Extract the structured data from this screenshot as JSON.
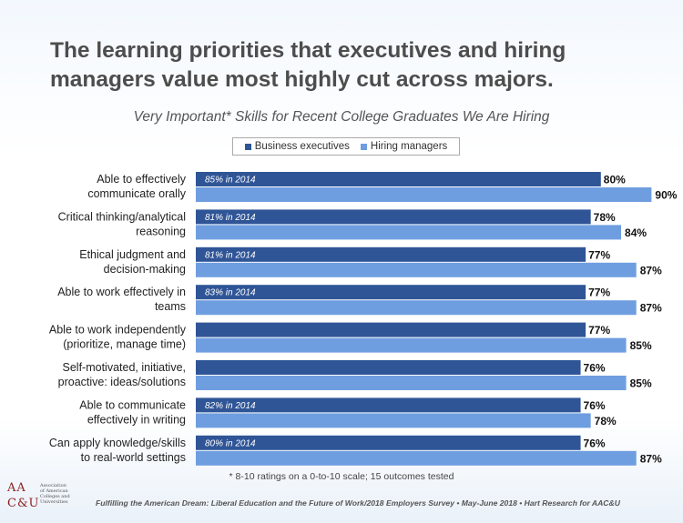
{
  "slide": {
    "title": "The learning priorities that executives and hiring managers value most highly cut across majors.",
    "footnote": "* 8-10 ratings on a 0-to-10 scale; 15 outcomes tested",
    "source": "Fulfilling the American Dream: Liberal Education and the Future of Work/2018 Employers Survey • May-June  2018 • Hart Research for AAC&U",
    "logo_mark": "AAC&U",
    "logo_caption": "Association of American Colleges and Universities"
  },
  "colors": {
    "business": "#2f5597",
    "hiring": "#6f9ee0",
    "label": "#222222"
  },
  "chart_data": {
    "type": "bar",
    "orientation": "horizontal",
    "title": "Very Important* Skills for Recent College Graduates We Are Hiring",
    "xlim": [
      0,
      100
    ],
    "legend": [
      "Business executives",
      "Hiring managers"
    ],
    "categories": [
      "Able to effectively communicate orally",
      "Critical thinking/analytical reasoning",
      "Ethical judgment and decision-making",
      "Able to work effectively in teams",
      "Able to work independently (prioritize, manage time)",
      "Self-motivated, initiative, proactive: ideas/solutions",
      "Able to communicate effectively in writing",
      "Can apply knowledge/skills to real-world settings"
    ],
    "category_lines": [
      [
        "Able to effectively",
        "communicate orally"
      ],
      [
        "Critical thinking/analytical",
        "reasoning"
      ],
      [
        "Ethical judgment and",
        "decision-making"
      ],
      [
        "Able to work effectively in",
        "teams"
      ],
      [
        "Able to work independently",
        "(prioritize, manage time)"
      ],
      [
        "Self-motivated, initiative,",
        "proactive: ideas/solutions"
      ],
      [
        "Able to communicate",
        "effectively in writing"
      ],
      [
        "Can apply knowledge/skills",
        "to real-world settings"
      ]
    ],
    "series": [
      {
        "name": "Business executives",
        "values": [
          80,
          78,
          77,
          77,
          77,
          76,
          76,
          76
        ],
        "value_labels": [
          "80%",
          "78%",
          "77%",
          "77%",
          "77%",
          "76%",
          "76%",
          "76%"
        ],
        "annotations": [
          "85% in 2014",
          "81% in 2014",
          "81% in 2014",
          "83% in 2014",
          "",
          "",
          "82% in 2014",
          "80% in 2014"
        ]
      },
      {
        "name": "Hiring managers",
        "values": [
          90,
          84,
          87,
          87,
          85,
          85,
          78,
          87
        ],
        "value_labels": [
          "90%",
          "84%",
          "87%",
          "87%",
          "85%",
          "85%",
          "78%",
          "87%"
        ]
      }
    ]
  }
}
